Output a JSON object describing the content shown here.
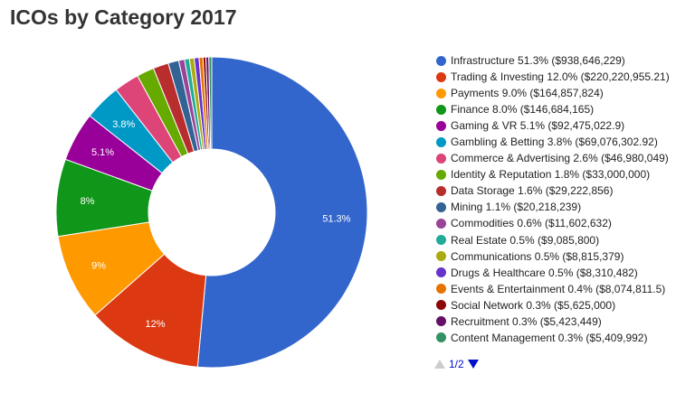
{
  "chart_data": {
    "type": "pie",
    "title": "ICOs by Category 2017",
    "slices": [
      {
        "category": "Infrastructure",
        "percent": 51.3,
        "amount": "$938,646,229",
        "color": "#3366cc",
        "legend": "Infrastructure 51.3% ($938,646,229)",
        "label": "51.3%"
      },
      {
        "category": "Trading & Investing",
        "percent": 12.0,
        "amount": "$220,220,955.21",
        "color": "#dc3912",
        "legend": "Trading & Investing 12.0% ($220,220,955.21)",
        "label": "12%"
      },
      {
        "category": "Payments",
        "percent": 9.0,
        "amount": "$164,857,824",
        "color": "#ff9900",
        "legend": "Payments 9.0% ($164,857,824)",
        "label": "9%"
      },
      {
        "category": "Finance",
        "percent": 8.0,
        "amount": "$146,684,165",
        "color": "#109618",
        "legend": "Finance 8.0% ($146,684,165)",
        "label": "8%"
      },
      {
        "category": "Gaming & VR",
        "percent": 5.1,
        "amount": "$92,475,022.9",
        "color": "#990099",
        "legend": "Gaming & VR 5.1% ($92,475,022.9)",
        "label": "5.1%"
      },
      {
        "category": "Gambling & Betting",
        "percent": 3.8,
        "amount": "$69,076,302.92",
        "color": "#0099c6",
        "legend": "Gambling & Betting 3.8% ($69,076,302.92)",
        "label": "3.8%"
      },
      {
        "category": "Commerce & Advertising",
        "percent": 2.6,
        "amount": "$46,980,049",
        "color": "#dd4477",
        "legend": "Commerce & Advertising 2.6% ($46,980,049)",
        "label": ""
      },
      {
        "category": "Identity & Reputation",
        "percent": 1.8,
        "amount": "$33,000,000",
        "color": "#66aa00",
        "legend": "Identity & Reputation 1.8% ($33,000,000)",
        "label": ""
      },
      {
        "category": "Data Storage",
        "percent": 1.6,
        "amount": "$29,222,856",
        "color": "#b82e2e",
        "legend": "Data Storage 1.6% ($29,222,856)",
        "label": ""
      },
      {
        "category": "Mining",
        "percent": 1.1,
        "amount": "$20,218,239",
        "color": "#316395",
        "legend": "Mining 1.1% ($20,218,239)",
        "label": ""
      },
      {
        "category": "Commodities",
        "percent": 0.6,
        "amount": "$11,602,632",
        "color": "#994499",
        "legend": "Commodities 0.6% ($11,602,632)",
        "label": ""
      },
      {
        "category": "Real Estate",
        "percent": 0.5,
        "amount": "$9,085,800",
        "color": "#22aa99",
        "legend": "Real Estate 0.5% ($9,085,800)",
        "label": ""
      },
      {
        "category": "Communications",
        "percent": 0.5,
        "amount": "$8,815,379",
        "color": "#aaaa11",
        "legend": "Communications 0.5% ($8,815,379)",
        "label": ""
      },
      {
        "category": "Drugs & Healthcare",
        "percent": 0.5,
        "amount": "$8,310,482",
        "color": "#6633cc",
        "legend": "Drugs & Healthcare 0.5% ($8,310,482)",
        "label": ""
      },
      {
        "category": "Events & Entertainment",
        "percent": 0.4,
        "amount": "$8,074,811.5",
        "color": "#e67300",
        "legend": "Events & Entertainment 0.4% ($8,074,811.5)",
        "label": ""
      },
      {
        "category": "Social Network",
        "percent": 0.3,
        "amount": "$5,625,000",
        "color": "#8b0707",
        "legend": "Social Network 0.3% ($5,625,000)",
        "label": ""
      },
      {
        "category": "Recruitment",
        "percent": 0.3,
        "amount": "$5,423,449",
        "color": "#651067",
        "legend": "Recruitment 0.3% ($5,423,449)",
        "label": ""
      },
      {
        "category": "Content Management",
        "percent": 0.3,
        "amount": "$5,409,992",
        "color": "#329262",
        "legend": "Content Management 0.3% ($5,409,992)",
        "label": ""
      }
    ],
    "donut": true,
    "legend_position": "right"
  },
  "pager": {
    "text": "1/2",
    "prev_icon": "triangle-up-icon",
    "next_icon": "triangle-down-icon"
  }
}
